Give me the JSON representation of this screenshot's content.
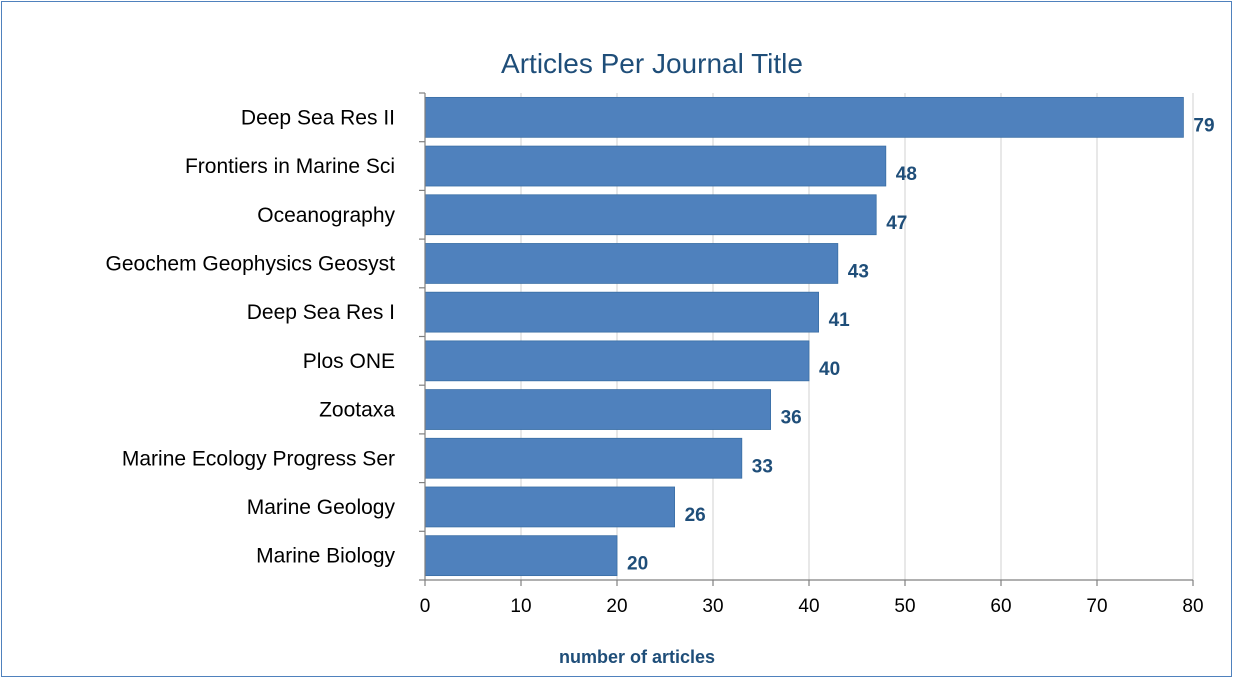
{
  "chart_data": {
    "type": "bar",
    "orientation": "horizontal",
    "title": "Articles Per Journal Title",
    "xlabel": "number of articles",
    "ylabel": "",
    "categories": [
      "Deep Sea Res II",
      "Frontiers in Marine Sci",
      "Oceanography",
      "Geochem Geophysics Geosyst",
      "Deep Sea Res I",
      "Plos ONE",
      "Zootaxa",
      "Marine Ecology Progress Ser",
      "Marine Geology",
      "Marine Biology"
    ],
    "values": [
      79,
      48,
      47,
      43,
      41,
      40,
      36,
      33,
      26,
      20
    ],
    "xlim": [
      0,
      80
    ],
    "xticks": [
      0,
      10,
      20,
      30,
      40,
      50,
      60,
      70,
      80
    ],
    "grid": "vertical",
    "data_labels": true,
    "legend": "none",
    "colors": {
      "bar": "#4f81bd",
      "bar_edge": "#3a6ea5",
      "title": "#1f4e79",
      "data_label": "#1f4e79",
      "grid": "#d9d9d9",
      "axis": "#808080",
      "border": "#4f81bd"
    }
  }
}
